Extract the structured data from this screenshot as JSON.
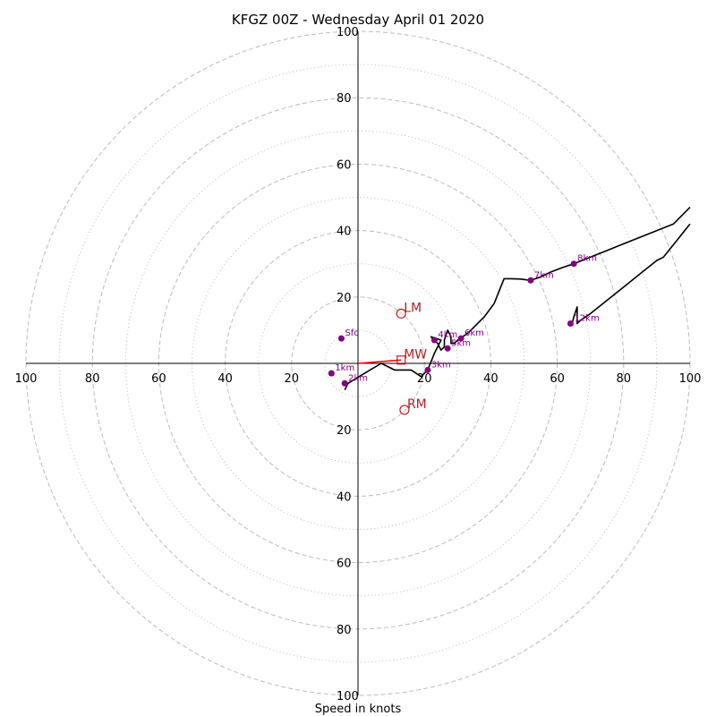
{
  "chart_data": {
    "type": "scatter",
    "subtype": "hodograph",
    "title": "KFGZ 00Z - Wednesday April 01 2020",
    "xlabel": "Speed in knots",
    "ylabel": "",
    "xlim": [
      -100,
      100
    ],
    "ylim": [
      -100,
      100
    ],
    "rings": {
      "dashed": [
        20,
        40,
        60,
        80,
        100
      ],
      "dotted": [
        10,
        30,
        50,
        70,
        90
      ]
    },
    "x_tick_labels": [
      "100",
      "80",
      "60",
      "40",
      "20",
      "20",
      "40",
      "60",
      "80",
      "100"
    ],
    "x_tick_values": [
      -100,
      -80,
      -60,
      -40,
      -20,
      20,
      40,
      60,
      80,
      100
    ],
    "y_tick_labels": [
      "100",
      "80",
      "60",
      "40",
      "20",
      "20",
      "40",
      "60",
      "80",
      "100"
    ],
    "y_tick_values": [
      100,
      80,
      60,
      40,
      20,
      -20,
      -40,
      -60,
      -80,
      -100
    ],
    "hodograph_trace": [
      [
        -4,
        -8
      ],
      [
        -3,
        -6
      ],
      [
        2,
        -3
      ],
      [
        7,
        0
      ],
      [
        11,
        -2
      ],
      [
        16,
        -2
      ],
      [
        19,
        -4
      ],
      [
        21,
        -2
      ],
      [
        23,
        3
      ],
      [
        25,
        7
      ],
      [
        22,
        8
      ],
      [
        24,
        6
      ],
      [
        25,
        4
      ],
      [
        26,
        5
      ],
      [
        26,
        7
      ],
      [
        27,
        10
      ],
      [
        28,
        8
      ],
      [
        28,
        6
      ],
      [
        29,
        6
      ],
      [
        30,
        7
      ],
      [
        33,
        9
      ],
      [
        35,
        11
      ],
      [
        38,
        14
      ],
      [
        41,
        18
      ],
      [
        43,
        23
      ],
      [
        44,
        25.5
      ],
      [
        46,
        25.5
      ],
      [
        49,
        25.4
      ],
      [
        52,
        25
      ],
      [
        55,
        26
      ],
      [
        58,
        27.5
      ],
      [
        62,
        29
      ],
      [
        65,
        30
      ],
      [
        70,
        32
      ],
      [
        75,
        34
      ],
      [
        80,
        36
      ],
      [
        85,
        38
      ],
      [
        90,
        40
      ],
      [
        95,
        42
      ],
      [
        100,
        47
      ]
    ],
    "hodograph_trace_branch": [
      [
        100,
        42
      ],
      [
        96,
        37
      ],
      [
        92,
        32
      ],
      [
        90,
        31
      ],
      [
        85,
        27
      ],
      [
        80,
        23
      ],
      [
        75,
        19
      ],
      [
        70,
        15
      ],
      [
        67,
        13
      ],
      [
        66,
        12
      ],
      [
        66,
        17
      ],
      [
        65,
        14
      ],
      [
        64.5,
        12
      ],
      [
        64.2,
        11.5
      ]
    ],
    "height_markers": [
      {
        "label": "Sfc",
        "u": -5,
        "v": 7.5
      },
      {
        "label": "1km",
        "u": -8,
        "v": -3
      },
      {
        "label": "2km",
        "u": -4,
        "v": -6
      },
      {
        "label": "3km",
        "u": 21,
        "v": -2
      },
      {
        "label": "4km",
        "u": 23,
        "v": 7
      },
      {
        "label": "5km",
        "u": 27,
        "v": 4.5
      },
      {
        "label": "6km",
        "u": 31,
        "v": 7.5
      },
      {
        "label": "7km",
        "u": 52,
        "v": 25
      },
      {
        "label": "8km",
        "u": 65,
        "v": 30
      },
      {
        "label": "12km",
        "u": 64,
        "v": 12
      }
    ],
    "storm_motion": [
      {
        "label": "LM",
        "u": 13,
        "v": 15
      },
      {
        "label": "MW",
        "u": 13,
        "v": 1
      },
      {
        "label": "RM",
        "u": 14,
        "v": -14
      }
    ],
    "shear_vector": {
      "from_u": 0,
      "from_v": 0,
      "to_u": 13,
      "to_v": 1
    },
    "colors": {
      "ring": "#bbbbbb",
      "axes": "#000000",
      "trace": "#000000",
      "height_marker": "#800080",
      "storm_motion": "#b22222",
      "shear_vector": "#ff0000"
    }
  }
}
